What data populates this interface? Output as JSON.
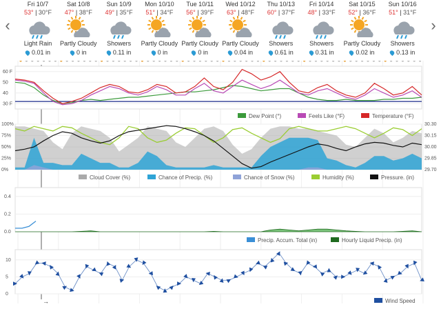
{
  "nav": {
    "left_arrow": "‹",
    "right_arrow": "›"
  },
  "days": [
    {
      "date": "Fri 10/7",
      "high": "53°",
      "low": "30°F",
      "condition": "Light Rain",
      "precip": "0.01 in",
      "icon": "rain-icon"
    },
    {
      "date": "Sat 10/8",
      "high": "47°",
      "low": "38°F",
      "condition": "Partly Cloudy",
      "precip": "0 in",
      "icon": "partly-cloudy-icon"
    },
    {
      "date": "Sun 10/9",
      "high": "49°",
      "low": "35°F",
      "condition": "Showers",
      "precip": "0.11 in",
      "icon": "rain-icon"
    },
    {
      "date": "Mon 10/10",
      "high": "51°",
      "low": "34°F",
      "condition": "Partly Cloudy",
      "precip": "0 in",
      "icon": "partly-cloudy-icon"
    },
    {
      "date": "Tue 10/11",
      "high": "56°",
      "low": "39°F",
      "condition": "Partly Cloudy",
      "precip": "0 in",
      "icon": "partly-cloudy-icon"
    },
    {
      "date": "Wed 10/12",
      "high": "63°",
      "low": "48°F",
      "condition": "Partly Cloudy",
      "precip": "0.04 in",
      "icon": "partly-cloudy-icon"
    },
    {
      "date": "Thu 10/13",
      "high": "60°",
      "low": "37°F",
      "condition": "Showers",
      "precip": "0.61 in",
      "icon": "rain-icon"
    },
    {
      "date": "Fri 10/14",
      "high": "48°",
      "low": "33°F",
      "condition": "Showers",
      "precip": "0.31 in",
      "icon": "rain-icon"
    },
    {
      "date": "Sat 10/15",
      "high": "52°",
      "low": "36°F",
      "condition": "Partly Cloudy",
      "precip": "0.02 in",
      "icon": "partly-cloudy-icon"
    },
    {
      "date": "Sun 10/16",
      "high": "51°",
      "low": "31°F",
      "condition": "Showers",
      "precip": "0.13 in",
      "icon": "rain-icon"
    }
  ],
  "colors": {
    "temperature": "#d62728",
    "feels_like": "#b84ab5",
    "dew_point": "#3b9a3b",
    "cloud_cover": "#aaaaaa",
    "chance_precip": "#2fa4d6",
    "chance_snow": "#8fa3d8",
    "humidity": "#9acd32",
    "pressure": "#111111",
    "precip_accum": "#3a8fd6",
    "hourly_liquid": "#1f6b1f",
    "wind_speed": "#1f4fa0",
    "freezing_line": "#1a2a8a",
    "rain_drop": "#2b9bd4",
    "sun": "#f5a623",
    "cloud": "#9aa3ad"
  },
  "chart_data": [
    {
      "type": "line",
      "title": "",
      "y_ticks": [
        "60 F",
        "50",
        "40",
        "30 F"
      ],
      "ylim": [
        25,
        65
      ],
      "series": [
        {
          "name": "Dew Point (°)",
          "values": [
            50,
            49,
            45,
            38,
            33,
            30,
            31,
            33,
            34,
            33,
            34,
            35,
            36,
            36,
            37,
            38,
            39,
            40,
            41,
            41,
            42,
            43,
            45,
            47,
            46,
            44,
            42,
            43,
            44,
            44,
            40,
            36,
            34,
            33,
            33,
            34,
            33,
            33,
            33,
            34,
            34,
            35,
            35,
            36
          ]
        },
        {
          "name": "Feels Like (°F)",
          "values": [
            52,
            51,
            49,
            40,
            32,
            29,
            30,
            33,
            38,
            42,
            46,
            44,
            40,
            38,
            41,
            46,
            43,
            38,
            38,
            44,
            49,
            42,
            40,
            46,
            52,
            48,
            44,
            47,
            52,
            46,
            40,
            38,
            42,
            44,
            40,
            36,
            34,
            38,
            44,
            40,
            36,
            38,
            42,
            36
          ]
        },
        {
          "name": "Temperature (°F)",
          "values": [
            53,
            52,
            50,
            42,
            35,
            30,
            32,
            35,
            40,
            45,
            48,
            46,
            41,
            40,
            43,
            48,
            46,
            40,
            41,
            46,
            54,
            46,
            43,
            50,
            62,
            58,
            52,
            55,
            60,
            50,
            42,
            40,
            45,
            48,
            42,
            38,
            36,
            40,
            49,
            44,
            38,
            40,
            46,
            38
          ]
        }
      ],
      "legend": [
        "Dew Point (°)",
        "Feels Like (°F)",
        "Temperature (°F)"
      ],
      "legend_placement": "bottom-right"
    },
    {
      "type": "area",
      "left_ticks": [
        "100%",
        "75%",
        "50%",
        "25%",
        "0%"
      ],
      "right_ticks": [
        "30.30",
        "30.15",
        "30.00",
        "29.85",
        "29.70"
      ],
      "ylim": [
        0,
        100
      ],
      "pressure_lim": [
        29.7,
        30.3
      ],
      "series": [
        {
          "name": "Cloud Cover (%)",
          "values": [
            95,
            95,
            90,
            85,
            60,
            45,
            80,
            95,
            90,
            85,
            70,
            40,
            55,
            70,
            95,
            90,
            85,
            60,
            50,
            70,
            90,
            95,
            85,
            55,
            35,
            45,
            70,
            90,
            95,
            95,
            90,
            90,
            85,
            80,
            75,
            55,
            50,
            70,
            90,
            80,
            60,
            70,
            85,
            80
          ]
        },
        {
          "name": "Chance of Precip. (%)",
          "values": [
            5,
            5,
            70,
            15,
            15,
            10,
            10,
            35,
            25,
            15,
            15,
            5,
            5,
            15,
            40,
            30,
            10,
            5,
            5,
            5,
            5,
            10,
            5,
            5,
            5,
            5,
            30,
            50,
            60,
            70,
            70,
            70,
            65,
            25,
            20,
            10,
            5,
            15,
            30,
            30,
            20,
            25,
            35,
            25
          ]
        },
        {
          "name": "Chance of Snow (%)",
          "values": [
            0,
            0,
            10,
            5,
            0,
            0,
            0,
            0,
            0,
            0,
            0,
            0,
            0,
            0,
            0,
            0,
            0,
            0,
            0,
            0,
            0,
            0,
            0,
            0,
            0,
            0,
            0,
            0,
            0,
            0,
            0,
            5,
            5,
            0,
            0,
            0,
            0,
            0,
            0,
            0,
            0,
            0,
            0,
            0
          ]
        },
        {
          "name": "Humidity (%)",
          "values": [
            90,
            85,
            95,
            90,
            85,
            95,
            92,
            80,
            70,
            60,
            55,
            70,
            95,
            90,
            70,
            60,
            65,
            80,
            92,
            90,
            75,
            60,
            70,
            88,
            92,
            80,
            70,
            60,
            68,
            90,
            95,
            90,
            85,
            85,
            90,
            95,
            90,
            80,
            70,
            80,
            92,
            88,
            75,
            90
          ]
        },
        {
          "name": "Pressure. (in)",
          "values": [
            29.95,
            29.97,
            30.0,
            30.08,
            30.15,
            30.2,
            30.18,
            30.12,
            30.08,
            30.05,
            30.08,
            30.15,
            30.2,
            30.22,
            30.24,
            30.26,
            30.28,
            30.27,
            30.24,
            30.2,
            30.15,
            30.08,
            29.98,
            29.88,
            29.78,
            29.72,
            29.74,
            29.8,
            29.85,
            29.9,
            29.95,
            30.0,
            30.04,
            30.02,
            29.98,
            29.95,
            30.0,
            30.04,
            30.06,
            30.05,
            30.02,
            30.0,
            30.05,
            30.03
          ]
        }
      ],
      "legend": [
        "Cloud Cover (%)",
        "Chance of Precip. (%)",
        "Chance of Snow (%)",
        "Humidity (%)",
        "Pressure. (in)"
      ],
      "legend_placement": "bottom"
    },
    {
      "type": "area",
      "y_ticks": [
        "0.4",
        "0.2",
        "0.0"
      ],
      "ylim": [
        0,
        0.5
      ],
      "series": [
        {
          "name": "Precip. Accum. Total (in)",
          "values": [
            0.04,
            0.04,
            0.06,
            0.12
          ]
        },
        {
          "name": "Hourly Liquid Precip. (in)",
          "values": [
            0,
            0,
            0,
            0,
            0,
            0,
            0,
            0.005,
            0.01,
            0,
            0,
            0,
            0,
            0,
            0,
            0,
            0,
            0,
            0,
            0,
            0,
            0.005,
            0,
            0,
            0,
            0,
            0,
            0.02,
            0.03,
            0.02,
            0.01,
            0.02,
            0.03,
            0.03,
            0.02,
            0.01,
            0.005,
            0,
            0,
            0,
            0,
            0.005,
            0.01,
            0
          ]
        }
      ],
      "legend": [
        "Precip. Accum. Total (in)",
        "Hourly Liquid Precip. (in)"
      ],
      "legend_placement": "bottom-right"
    },
    {
      "type": "line",
      "y_ticks": [
        "10",
        "5",
        "0"
      ],
      "ylim": [
        0,
        13
      ],
      "series": [
        {
          "name": "Wind Speed",
          "values": [
            3,
            5,
            6,
            9,
            9,
            8,
            6,
            2,
            1,
            5,
            8,
            7,
            6,
            9,
            8,
            4,
            8,
            10,
            9,
            6,
            2,
            1,
            2,
            3,
            5,
            4,
            3,
            6,
            5,
            4,
            4,
            5,
            6,
            7,
            9,
            8,
            10,
            12,
            9,
            7,
            6,
            9,
            8,
            6,
            7,
            5,
            5,
            6,
            7,
            6,
            9,
            8,
            4,
            5,
            6,
            8,
            9,
            4
          ]
        }
      ],
      "legend": [
        "Wind Speed"
      ],
      "legend_placement": "bottom-right"
    }
  ],
  "time_arrow": "→"
}
